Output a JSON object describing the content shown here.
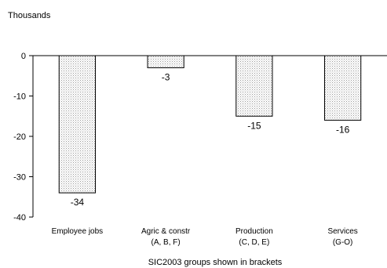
{
  "chart_data": {
    "type": "bar",
    "ylabel": "Thousands",
    "xlabel": "SIC2003 groups shown in brackets",
    "categories": [
      {
        "line1": "Employee jobs",
        "line2": ""
      },
      {
        "line1": "Agric & constr",
        "line2": "(A, B, F)"
      },
      {
        "line1": "Production",
        "line2": "(C, D, E)"
      },
      {
        "line1": "Services",
        "line2": "(G-O)"
      }
    ],
    "values": [
      -34,
      -3,
      -15,
      -16
    ],
    "data_labels": [
      "-34",
      "-3",
      "-15",
      "-16"
    ],
    "ylim": [
      -40,
      0
    ],
    "yticks": [
      0,
      -10,
      -20,
      -30,
      -40
    ],
    "ytick_labels": [
      "0",
      "-10",
      "-20",
      "-30",
      "-40"
    ],
    "grid": false,
    "bar_fill": "#e4e4e4",
    "bar_stroke": "#000000"
  }
}
